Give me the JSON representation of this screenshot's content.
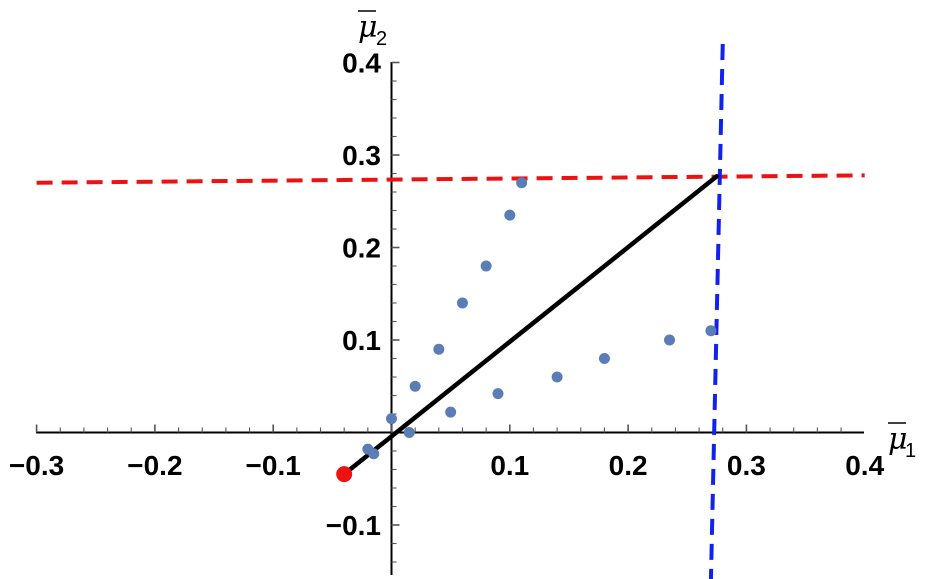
{
  "chart_data": {
    "type": "scatter",
    "xlabel": "μ",
    "xlabel_subscript": "1",
    "ylabel": "μ",
    "ylabel_subscript": "2",
    "xlim": [
      -0.3,
      0.4
    ],
    "ylim": [
      -0.15,
      0.4
    ],
    "x_ticks": [
      -0.3,
      -0.2,
      -0.1,
      0.1,
      0.2,
      0.3,
      0.4
    ],
    "x_tick_labels": [
      "−0.3",
      "−0.2",
      "−0.1",
      "0.1",
      "0.2",
      "0.3",
      "0.4"
    ],
    "y_ticks": [
      0.4,
      0.3,
      0.2,
      0.1,
      -0.1
    ],
    "y_tick_labels": [
      "0.4",
      "0.3",
      "0.2",
      "0.1",
      "−0.1"
    ],
    "grid": false,
    "points": {
      "color": "#5b7db5",
      "x": [
        0.11,
        0.1,
        0.08,
        0.06,
        0.04,
        0.02,
        0.0,
        -0.02,
        -0.015,
        0.015,
        0.05,
        0.09,
        0.14,
        0.18,
        0.235,
        0.27
      ],
      "y": [
        0.27,
        0.235,
        0.18,
        0.14,
        0.09,
        0.05,
        0.015,
        -0.018,
        -0.023,
        0.0,
        0.022,
        0.042,
        0.06,
        0.08,
        0.1,
        0.11
      ]
    },
    "red_point": {
      "x": -0.04,
      "y": -0.045,
      "color": "#ee1111"
    },
    "black_line": {
      "x": [
        -0.04,
        0.275
      ],
      "y": [
        -0.045,
        0.277
      ],
      "color": "#000000"
    },
    "red_dashed_line": {
      "x": [
        -0.3,
        0.4
      ],
      "y": [
        0.27,
        0.278
      ],
      "color": "#ee1111"
    },
    "blue_dashed_line": {
      "x": [
        0.28,
        0.27
      ],
      "y": [
        0.42,
        -0.16
      ],
      "color": "#1122ee"
    }
  }
}
